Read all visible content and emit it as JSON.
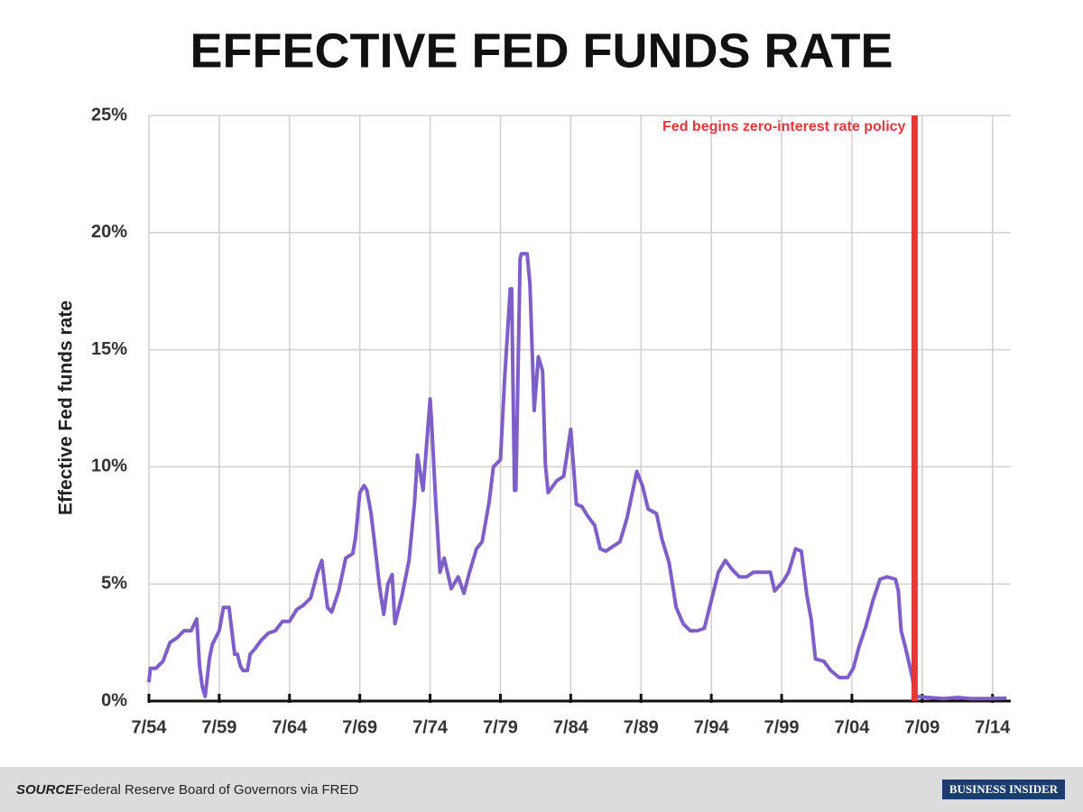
{
  "chart_data": {
    "type": "line",
    "title": "EFFECTIVE FED FUNDS RATE",
    "ylabel": "Effective Fed funds rate",
    "x": [
      1954.5,
      1954.6,
      1955,
      1955.5,
      1956,
      1956.5,
      1957,
      1957.5,
      1957.9,
      1958.1,
      1958.3,
      1958.5,
      1958.8,
      1959,
      1959.5,
      1959.8,
      1960.2,
      1960.4,
      1960.6,
      1960.8,
      1961,
      1961.2,
      1961.5,
      1961.7,
      1962,
      1962.5,
      1963,
      1963.5,
      1964,
      1964.5,
      1965,
      1965.5,
      1966,
      1966.5,
      1966.8,
      1967,
      1967.2,
      1967.5,
      1968,
      1968.5,
      1969,
      1969.2,
      1969.5,
      1969.8,
      1970,
      1970.3,
      1970.6,
      1970.9,
      1971.2,
      1971.5,
      1971.8,
      1972,
      1972.5,
      1973,
      1973.4,
      1973.6,
      1974,
      1974.5,
      1974.6,
      1974.9,
      1975.2,
      1975.5,
      1976,
      1976.5,
      1976.9,
      1977.3,
      1977.8,
      1978.2,
      1978.7,
      1979,
      1979.5,
      1979.8,
      1980.2,
      1980.3,
      1980.5,
      1980.6,
      1980.9,
      1981,
      1981.4,
      1981.6,
      1981.9,
      1982.2,
      1982.5,
      1982.7,
      1982.9,
      1983.5,
      1984,
      1984.5,
      1984.9,
      1985.3,
      1985.7,
      1986.2,
      1986.6,
      1987,
      1987.5,
      1988,
      1988.5,
      1989.2,
      1989.6,
      1990,
      1990.6,
      1991,
      1991.5,
      1992,
      1992.5,
      1993,
      1993.5,
      1994,
      1994.5,
      1995,
      1995.5,
      1996,
      1996.5,
      1997,
      1997.5,
      1998,
      1998.7,
      1999,
      1999.6,
      2000,
      2000.5,
      2000.9,
      2001.3,
      2001.6,
      2001.9,
      2002.5,
      2003,
      2003.6,
      2004.2,
      2004.6,
      2005,
      2005.5,
      2006,
      2006.5,
      2007,
      2007.6,
      2007.8,
      2008,
      2008.3,
      2008.8,
      2009,
      2010,
      2011,
      2012,
      2013,
      2014,
      2015.5
    ],
    "values": [
      0.8,
      1.4,
      1.4,
      1.7,
      2.5,
      2.7,
      3.0,
      3.0,
      3.5,
      1.5,
      0.6,
      0.2,
      1.8,
      2.4,
      3.0,
      4.0,
      4.0,
      3.0,
      2.0,
      2.0,
      1.5,
      1.3,
      1.3,
      2.0,
      2.2,
      2.6,
      2.9,
      3.0,
      3.4,
      3.4,
      3.9,
      4.1,
      4.4,
      5.5,
      6.0,
      5.0,
      4.0,
      3.8,
      4.7,
      6.1,
      6.3,
      7.0,
      8.9,
      9.2,
      9.0,
      8.0,
      6.5,
      4.9,
      3.7,
      5.0,
      5.4,
      3.3,
      4.5,
      6.0,
      8.5,
      10.5,
      9.0,
      12.9,
      12.0,
      8.5,
      5.5,
      6.1,
      4.8,
      5.3,
      4.6,
      5.5,
      6.5,
      6.8,
      8.5,
      10.0,
      10.3,
      13.8,
      17.6,
      17.6,
      9.0,
      9.0,
      18.9,
      19.1,
      19.1,
      17.8,
      12.4,
      14.7,
      14.1,
      10.1,
      8.9,
      9.4,
      9.6,
      11.6,
      8.4,
      8.3,
      7.9,
      7.5,
      6.5,
      6.4,
      6.6,
      6.8,
      7.8,
      9.8,
      9.2,
      8.2,
      8.0,
      6.9,
      5.9,
      4.0,
      3.3,
      3.0,
      3.0,
      3.1,
      4.3,
      5.5,
      6.0,
      5.6,
      5.3,
      5.3,
      5.5,
      5.5,
      5.5,
      4.7,
      5.1,
      5.5,
      6.5,
      6.4,
      4.5,
      3.5,
      1.8,
      1.7,
      1.3,
      1.0,
      1.0,
      1.4,
      2.3,
      3.2,
      4.3,
      5.2,
      5.3,
      5.2,
      4.7,
      3.0,
      2.3,
      1.0,
      0.2,
      0.15,
      0.1,
      0.15,
      0.1,
      0.1,
      0.12
    ],
    "color": "#7e5fc9",
    "xlim": [
      1954.5,
      2015.8
    ],
    "xticks": [
      {
        "value": 1954.5,
        "label": "7/54"
      },
      {
        "value": 1959.5,
        "label": "7/59"
      },
      {
        "value": 1964.5,
        "label": "7/64"
      },
      {
        "value": 1969.5,
        "label": "7/69"
      },
      {
        "value": 1974.5,
        "label": "7/74"
      },
      {
        "value": 1979.5,
        "label": "7/79"
      },
      {
        "value": 1984.5,
        "label": "7/84"
      },
      {
        "value": 1989.5,
        "label": "7/89"
      },
      {
        "value": 1994.5,
        "label": "7/94"
      },
      {
        "value": 1999.5,
        "label": "7/99"
      },
      {
        "value": 2004.5,
        "label": "7/04"
      },
      {
        "value": 2009.5,
        "label": "7/09"
      },
      {
        "value": 2014.5,
        "label": "7/14"
      }
    ],
    "ylim": [
      0,
      25
    ],
    "yticks": [
      {
        "value": 0,
        "label": "0%"
      },
      {
        "value": 5,
        "label": "5%"
      },
      {
        "value": 10,
        "label": "10%"
      },
      {
        "value": 15,
        "label": "15%"
      },
      {
        "value": 20,
        "label": "20%"
      },
      {
        "value": 25,
        "label": "25%"
      }
    ],
    "grid": true,
    "annotation": {
      "text": "Fed begins zero-interest rate policy",
      "x": 2008.96,
      "color": "#e8373a"
    }
  },
  "footer": {
    "source_label": "SOURCE:",
    "source": "Federal Reserve Board of Governors via FRED",
    "logo": "BUSINESS INSIDER"
  }
}
